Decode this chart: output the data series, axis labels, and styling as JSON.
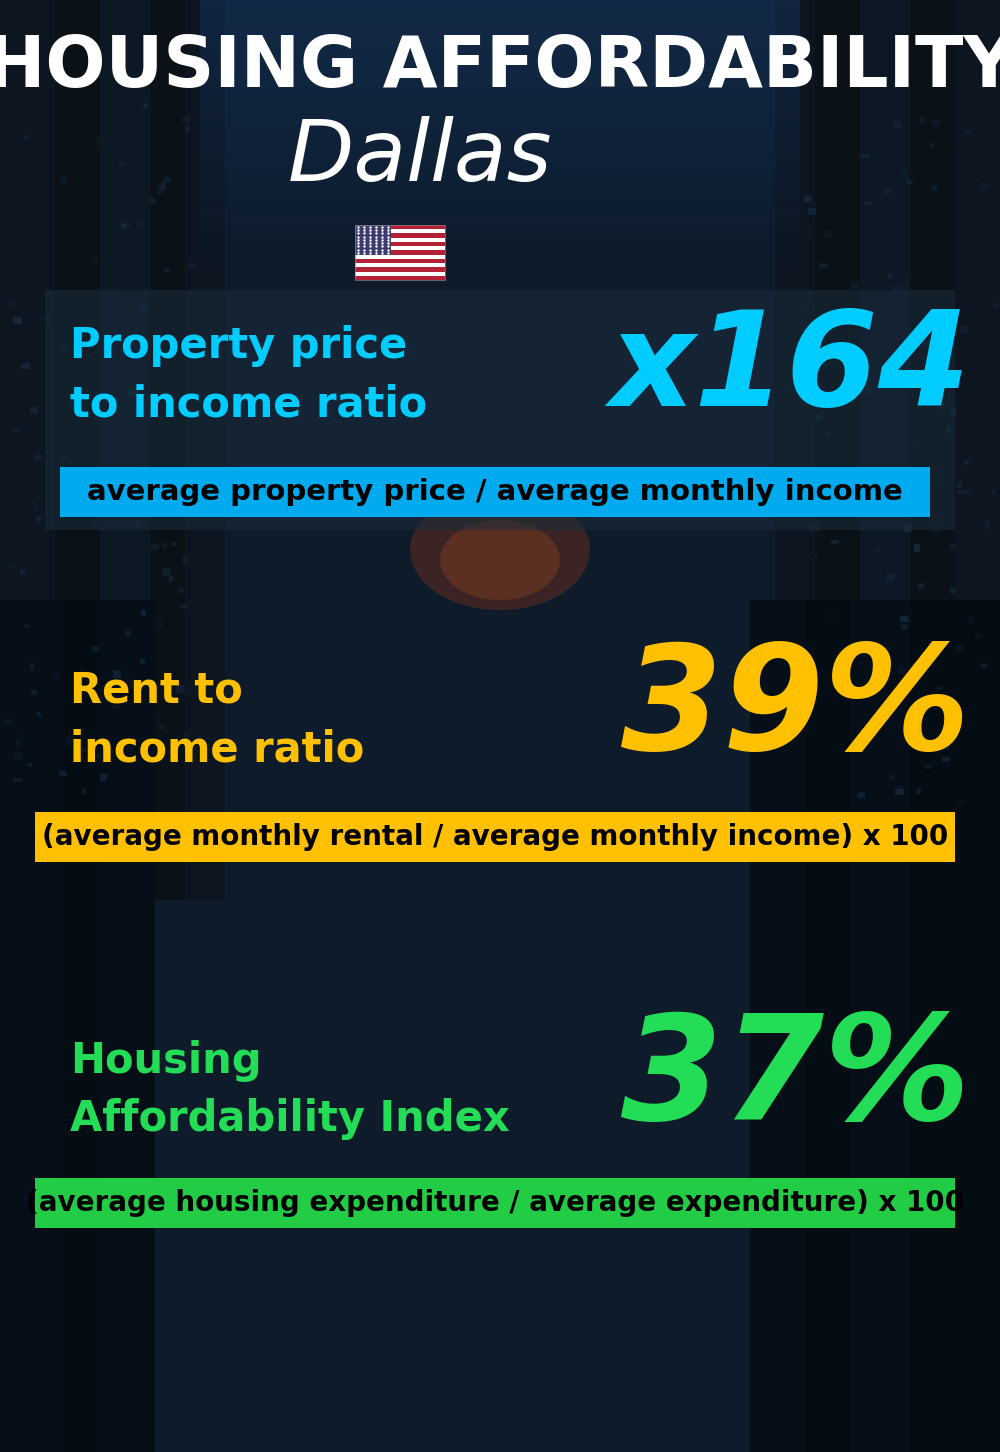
{
  "title_line1": "HOUSING AFFORDABILITY",
  "title_line2": "Dallas",
  "section1_label": "Property price\nto income ratio",
  "section1_value": "x164",
  "section1_label_color": "#00ccff",
  "section1_value_color": "#00ccff",
  "section1_banner_text": "average property price / average monthly income",
  "section1_banner_bg": "#00aaee",
  "section2_label": "Rent to\nincome ratio",
  "section2_value": "39%",
  "section2_label_color": "#ffc000",
  "section2_value_color": "#ffc000",
  "section2_banner_text": "(average monthly rental / average monthly income) x 100",
  "section2_banner_bg": "#ffc000",
  "section3_label": "Housing\nAffordability Index",
  "section3_value": "37%",
  "section3_label_color": "#22dd55",
  "section3_value_color": "#22dd55",
  "section3_banner_text": "(average housing expenditure / average expenditure) x 100",
  "section3_banner_bg": "#22cc44",
  "bg_color": "#0a1422",
  "title_color": "#ffffff",
  "banner_text_color": "#000000",
  "figsize": [
    10.0,
    14.52
  ],
  "dpi": 100
}
